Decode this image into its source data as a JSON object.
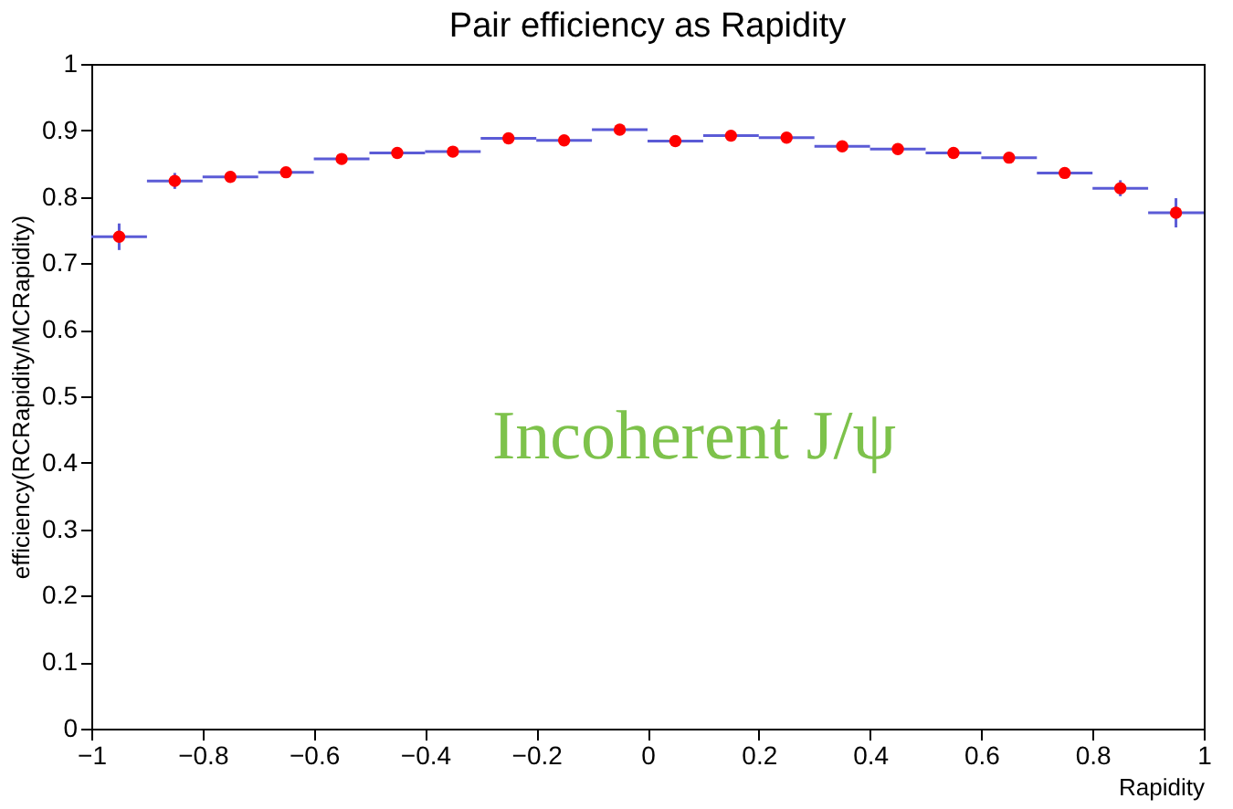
{
  "chart_data": {
    "type": "scatter",
    "title": "Pair efficiency as Rapidity",
    "xlabel": "Rapidity",
    "ylabel": "efficiency(RCRapidity/MCRapidity)",
    "annotations": [
      "Incoherent J/ψ"
    ],
    "x": [
      -0.95,
      -0.85,
      -0.75,
      -0.65,
      -0.55,
      -0.45,
      -0.35,
      -0.25,
      -0.15,
      -0.05,
      0.05,
      0.15,
      0.25,
      0.35,
      0.45,
      0.55,
      0.65,
      0.75,
      0.85,
      0.95
    ],
    "series": [
      {
        "color": "#ff0000",
        "values": [
          0.74,
          0.824,
          0.83,
          0.837,
          0.857,
          0.866,
          0.868,
          0.888,
          0.885,
          0.901,
          0.884,
          0.892,
          0.889,
          0.876,
          0.872,
          0.866,
          0.859,
          0.836,
          0.813,
          0.776
        ],
        "errors": [
          0.02,
          0.012,
          null,
          null,
          null,
          null,
          null,
          null,
          null,
          null,
          null,
          null,
          null,
          null,
          null,
          null,
          null,
          null,
          0.012,
          0.022
        ],
        "xerrors": [
          0.05,
          0.05,
          0.05,
          0.05,
          0.05,
          0.05,
          0.05,
          0.05,
          0.05,
          0.05,
          0.05,
          0.05,
          0.05,
          0.05,
          0.05,
          0.05,
          0.05,
          0.05,
          0.05,
          0.05
        ]
      }
    ],
    "xlim": [
      -1,
      1
    ],
    "ylim": [
      0,
      1
    ],
    "xticks": [
      -1,
      -0.8,
      -0.6,
      -0.4,
      -0.2,
      0,
      0.2,
      0.4,
      0.6,
      0.8,
      1
    ],
    "yticks": [
      0,
      0.1,
      0.2,
      0.3,
      0.4,
      0.5,
      0.6,
      0.7,
      0.8,
      0.9,
      1
    ],
    "grid": false,
    "marker": "circle"
  }
}
